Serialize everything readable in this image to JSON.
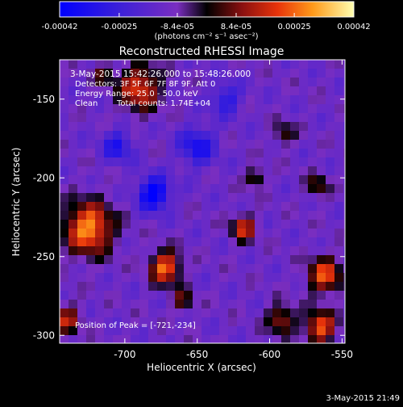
{
  "colorbar": {
    "tick_labels": [
      "-0.00042",
      "-0.00025",
      "-8.4e-05",
      "8.4e-05",
      "0.00025",
      "0.00042"
    ],
    "tick_values": [
      -0.00042,
      -0.00025,
      -8.4e-05,
      8.4e-05,
      0.00025,
      0.00042
    ],
    "unit_label": "(photons cm⁻² s⁻¹ asec⁻²)",
    "range": [
      -0.00042,
      0.00042
    ],
    "stops": [
      {
        "pos": 0.0,
        "color": "#0000ff"
      },
      {
        "pos": 0.2,
        "color": "#3b20d8"
      },
      {
        "pos": 0.4,
        "color": "#7a2ec0"
      },
      {
        "pos": 0.5,
        "color": "#000000"
      },
      {
        "pos": 0.62,
        "color": "#8a1010"
      },
      {
        "pos": 0.74,
        "color": "#e8330a"
      },
      {
        "pos": 0.86,
        "color": "#ff9a1a"
      },
      {
        "pos": 1.0,
        "color": "#ffffb0"
      }
    ]
  },
  "title": "Reconstructed RHESSI Image",
  "info": {
    "time_range": "3-May-2015 15:42:26.000 to 15:48:26.000",
    "detectors": "Detectors: 3F 5F 6F 7F 8F 9F, Att 0",
    "energy": "Energy Range: 25.0 - 50.0 keV",
    "method": "Clean",
    "counts": "Total counts: 1.74E+04"
  },
  "peak_label": "Position of Peak = [-721,-234]",
  "x_axis": {
    "label": "Heliocentric X (arcsec)",
    "range": [
      -745,
      -548
    ],
    "ticks": [
      -700,
      -650,
      -600,
      -550
    ],
    "tick_labels": [
      "-700",
      "-650",
      "-600",
      "-550"
    ]
  },
  "y_axis": {
    "label": "Heliocentric Y (arcsec)",
    "range": [
      -305,
      -125
    ],
    "ticks": [
      -300,
      -250,
      -200,
      -150
    ],
    "tick_labels": [
      "-300",
      "-250",
      "-200",
      "-150"
    ]
  },
  "image_blobs": [
    {
      "x": -725,
      "y": -232,
      "r": 16,
      "v": 1.0
    },
    {
      "x": -690,
      "y": -143,
      "r": 14,
      "v": 0.75
    },
    {
      "x": -715,
      "y": -135,
      "r": 7,
      "v": 0.35
    },
    {
      "x": -672,
      "y": -257,
      "r": 10,
      "v": 0.9
    },
    {
      "x": -618,
      "y": -232,
      "r": 8,
      "v": 0.7
    },
    {
      "x": -660,
      "y": -278,
      "r": 7,
      "v": 0.45
    },
    {
      "x": -562,
      "y": -262,
      "r": 11,
      "v": 0.8
    },
    {
      "x": -565,
      "y": -295,
      "r": 10,
      "v": 0.85
    },
    {
      "x": -592,
      "y": -290,
      "r": 9,
      "v": 0.6
    },
    {
      "x": -590,
      "y": -172,
      "r": 7,
      "v": 0.4
    },
    {
      "x": -567,
      "y": -205,
      "r": 7,
      "v": 0.45
    },
    {
      "x": -740,
      "y": -290,
      "r": 9,
      "v": 0.6
    },
    {
      "x": -610,
      "y": -200,
      "r": 6,
      "v": 0.5
    },
    {
      "x": -680,
      "y": -210,
      "r": 10,
      "v": -0.9
    },
    {
      "x": -650,
      "y": -180,
      "r": 12,
      "v": -0.55
    },
    {
      "x": -705,
      "y": -180,
      "r": 10,
      "v": -0.5
    },
    {
      "x": -630,
      "y": -150,
      "r": 10,
      "v": -0.45
    }
  ],
  "footer_timestamp": "3-May-2015 21:49"
}
